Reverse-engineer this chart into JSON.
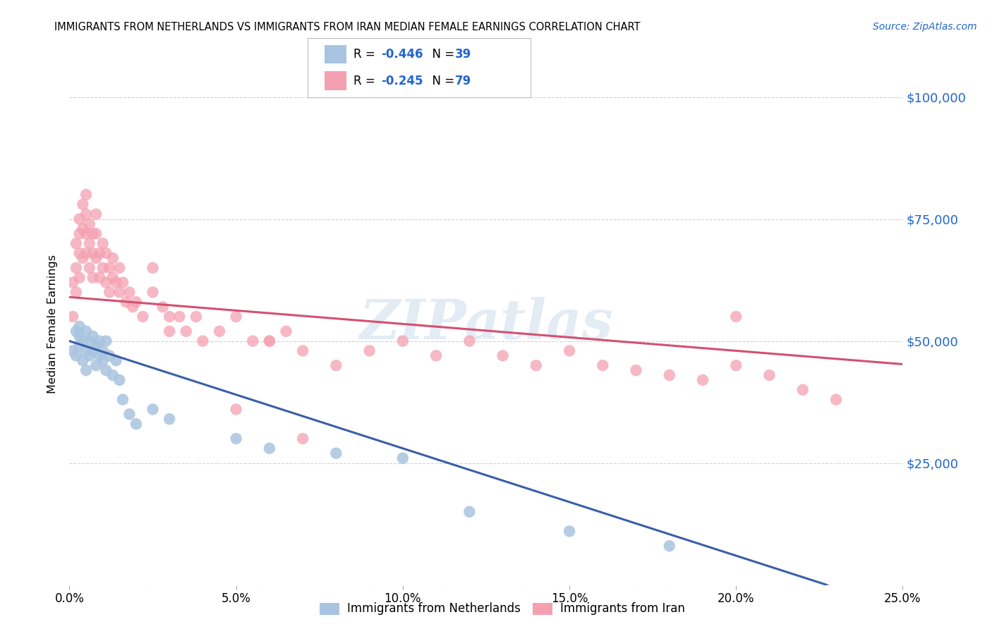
{
  "title": "IMMIGRANTS FROM NETHERLANDS VS IMMIGRANTS FROM IRAN MEDIAN FEMALE EARNINGS CORRELATION CHART",
  "source": "Source: ZipAtlas.com",
  "ylabel": "Median Female Earnings",
  "yticks": [
    0,
    25000,
    50000,
    75000,
    100000
  ],
  "ytick_labels": [
    "",
    "$25,000",
    "$50,000",
    "$75,000",
    "$100,000"
  ],
  "xmin": 0.0,
  "xmax": 0.25,
  "ymin": 0,
  "ymax": 107000,
  "color_netherlands": "#a8c4e0",
  "color_iran": "#f4a0b0",
  "line_color_netherlands": "#3a5fa8",
  "line_color_iran": "#d45070",
  "watermark": "ZIPatlas",
  "nl_intercept": 50000,
  "nl_slope": -220000,
  "ir_intercept": 59000,
  "ir_slope": -55000,
  "netherlands_x": [
    0.001,
    0.002,
    0.002,
    0.003,
    0.003,
    0.003,
    0.004,
    0.004,
    0.005,
    0.005,
    0.005,
    0.006,
    0.006,
    0.007,
    0.007,
    0.008,
    0.008,
    0.009,
    0.009,
    0.01,
    0.01,
    0.011,
    0.011,
    0.012,
    0.013,
    0.014,
    0.015,
    0.016,
    0.018,
    0.02,
    0.025,
    0.03,
    0.05,
    0.06,
    0.08,
    0.1,
    0.12,
    0.15,
    0.18
  ],
  "netherlands_y": [
    48000,
    52000,
    47000,
    51000,
    49000,
    53000,
    50000,
    46000,
    52000,
    48000,
    44000,
    50000,
    47000,
    51000,
    48000,
    49000,
    45000,
    50000,
    47000,
    48000,
    46000,
    50000,
    44000,
    47000,
    43000,
    46000,
    42000,
    38000,
    35000,
    33000,
    36000,
    34000,
    30000,
    28000,
    27000,
    26000,
    15000,
    11000,
    8000
  ],
  "iran_x": [
    0.001,
    0.001,
    0.002,
    0.002,
    0.002,
    0.003,
    0.003,
    0.003,
    0.003,
    0.004,
    0.004,
    0.004,
    0.005,
    0.005,
    0.005,
    0.005,
    0.006,
    0.006,
    0.006,
    0.007,
    0.007,
    0.007,
    0.008,
    0.008,
    0.008,
    0.009,
    0.009,
    0.01,
    0.01,
    0.011,
    0.011,
    0.012,
    0.012,
    0.013,
    0.013,
    0.014,
    0.015,
    0.015,
    0.016,
    0.017,
    0.018,
    0.019,
    0.02,
    0.022,
    0.025,
    0.025,
    0.028,
    0.03,
    0.03,
    0.033,
    0.035,
    0.038,
    0.04,
    0.045,
    0.05,
    0.055,
    0.06,
    0.065,
    0.07,
    0.08,
    0.09,
    0.1,
    0.11,
    0.12,
    0.13,
    0.14,
    0.15,
    0.16,
    0.17,
    0.18,
    0.19,
    0.2,
    0.21,
    0.22,
    0.23,
    0.05,
    0.06,
    0.07,
    0.2
  ],
  "iran_y": [
    62000,
    55000,
    70000,
    65000,
    60000,
    75000,
    72000,
    68000,
    63000,
    78000,
    73000,
    67000,
    80000,
    76000,
    72000,
    68000,
    74000,
    70000,
    65000,
    72000,
    68000,
    63000,
    76000,
    72000,
    67000,
    68000,
    63000,
    70000,
    65000,
    68000,
    62000,
    65000,
    60000,
    67000,
    63000,
    62000,
    65000,
    60000,
    62000,
    58000,
    60000,
    57000,
    58000,
    55000,
    65000,
    60000,
    57000,
    55000,
    52000,
    55000,
    52000,
    55000,
    50000,
    52000,
    55000,
    50000,
    50000,
    52000,
    48000,
    45000,
    48000,
    50000,
    47000,
    50000,
    47000,
    45000,
    48000,
    45000,
    44000,
    43000,
    42000,
    45000,
    43000,
    40000,
    38000,
    36000,
    50000,
    30000,
    55000
  ],
  "legend_r_nl": "-0.446",
  "legend_n_nl": "39",
  "legend_r_ir": "-0.245",
  "legend_n_ir": "79"
}
